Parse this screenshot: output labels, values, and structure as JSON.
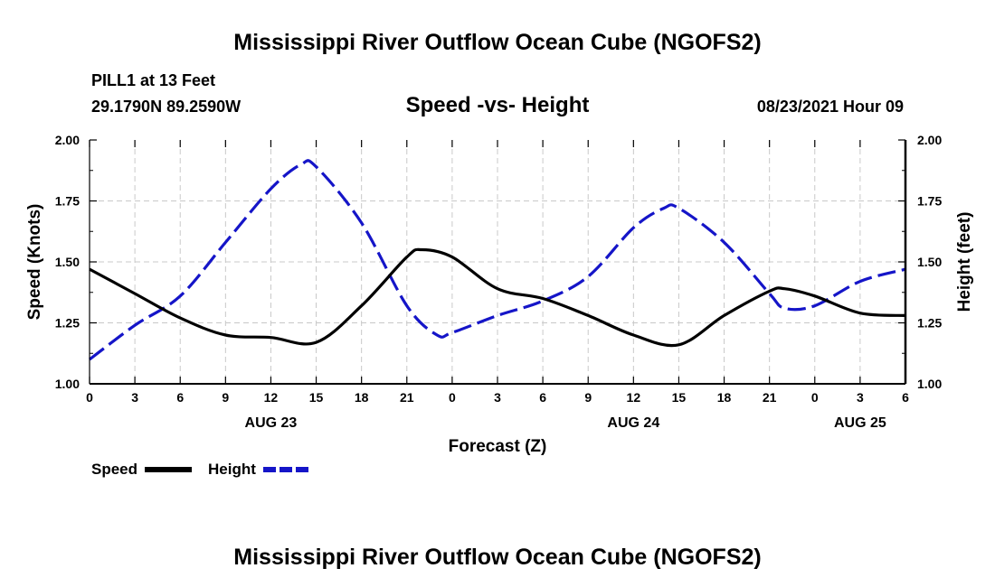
{
  "header": {
    "title": "Mississippi River Outflow Ocean Cube (NGOFS2)",
    "station": "PILL1 at 13 Feet",
    "coords": "29.1790N  89.2590W",
    "subtitle": "Speed -vs- Height",
    "datetime": "08/23/2021 Hour 09"
  },
  "footer": {
    "title": "Mississippi River Outflow Ocean Cube (NGOFS2)"
  },
  "chart_data": {
    "type": "line",
    "title": "Speed -vs- Height",
    "xlabel": "Forecast (Z)",
    "ylabel_left": "Speed (Knots)",
    "ylabel_right": "Height (feet)",
    "xlim": [
      0,
      54
    ],
    "ylim_left": [
      1.0,
      2.0
    ],
    "ylim_right": [
      1.0,
      2.0
    ],
    "grid": true,
    "legend_position": "bottom-left",
    "x_ticks": [
      {
        "h": 0,
        "label": "0"
      },
      {
        "h": 3,
        "label": "3"
      },
      {
        "h": 6,
        "label": "6"
      },
      {
        "h": 9,
        "label": "9"
      },
      {
        "h": 12,
        "label": "12"
      },
      {
        "h": 15,
        "label": "15"
      },
      {
        "h": 18,
        "label": "18"
      },
      {
        "h": 21,
        "label": "21"
      },
      {
        "h": 24,
        "label": "0"
      },
      {
        "h": 27,
        "label": "3"
      },
      {
        "h": 30,
        "label": "6"
      },
      {
        "h": 33,
        "label": "9"
      },
      {
        "h": 36,
        "label": "12"
      },
      {
        "h": 39,
        "label": "15"
      },
      {
        "h": 42,
        "label": "18"
      },
      {
        "h": 45,
        "label": "21"
      },
      {
        "h": 48,
        "label": "0"
      },
      {
        "h": 51,
        "label": "3"
      },
      {
        "h": 54,
        "label": "6"
      }
    ],
    "date_labels": [
      {
        "h": 12,
        "label": "AUG 23"
      },
      {
        "h": 36,
        "label": "AUG 24"
      },
      {
        "h": 51,
        "label": "AUG 25"
      }
    ],
    "y_ticks": [
      "1.00",
      "1.25",
      "1.50",
      "1.75",
      "2.00"
    ],
    "series": [
      {
        "name": "Speed",
        "color": "#000000",
        "style": "solid",
        "axis": "left",
        "x": [
          0,
          3,
          6,
          9,
          12,
          15,
          18,
          21,
          22,
          24,
          27,
          30,
          33,
          36,
          39,
          42,
          45,
          46,
          48,
          51,
          54
        ],
        "values": [
          1.47,
          1.37,
          1.27,
          1.2,
          1.19,
          1.17,
          1.32,
          1.52,
          1.55,
          1.52,
          1.39,
          1.35,
          1.28,
          1.2,
          1.16,
          1.28,
          1.38,
          1.39,
          1.36,
          1.29,
          1.28
        ]
      },
      {
        "name": "Height",
        "color": "#1515c8",
        "style": "dashed",
        "axis": "right",
        "x": [
          0,
          3,
          6,
          9,
          12,
          14,
          15,
          18,
          21,
          23,
          24,
          27,
          30,
          33,
          36,
          38,
          39,
          42,
          45,
          46,
          48,
          51,
          54
        ],
        "values": [
          1.1,
          1.24,
          1.36,
          1.58,
          1.8,
          1.9,
          1.89,
          1.66,
          1.32,
          1.2,
          1.21,
          1.28,
          1.34,
          1.44,
          1.64,
          1.72,
          1.72,
          1.58,
          1.37,
          1.31,
          1.32,
          1.42,
          1.47
        ]
      }
    ]
  }
}
